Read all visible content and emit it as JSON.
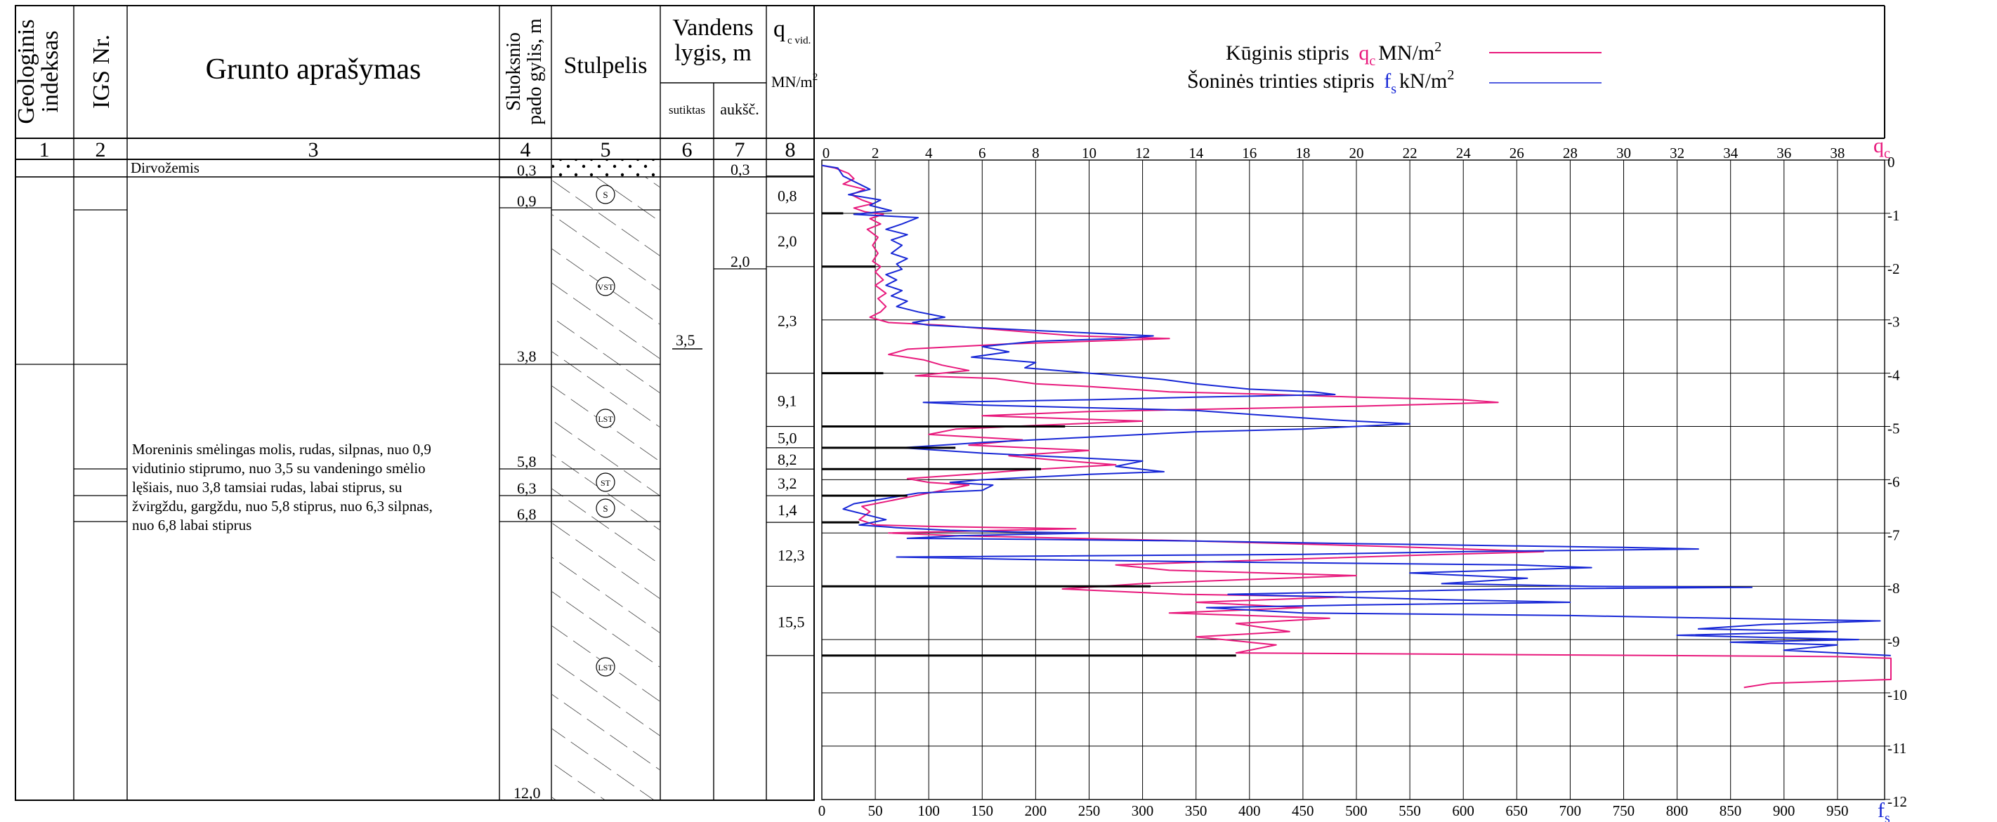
{
  "headers": {
    "col1": "Geologinis indeksas",
    "col1_l1": "Geologinis",
    "col1_l2": "indeksas",
    "col2": "IGS Nr.",
    "col3": "Grunto aprašymas",
    "col4": "Sluoksnio pado gylis, m",
    "col4_l1": "Sluoksnio",
    "col4_l2": "pado gylis, m",
    "col5": "Stulpelis",
    "col67": "Vandens lygis, m",
    "col67_l1": "Vandens",
    "col67_l2": "lygis, m",
    "col6": "sutiktas",
    "col7": "aukšč.",
    "col8_q": "q",
    "col8_sub": "c vid.",
    "col8_unit": "MN/m²",
    "col8_unit_base": "MN/m",
    "col8_unit_sup": "2"
  },
  "column_numbers": [
    "1",
    "2",
    "3",
    "4",
    "5",
    "6",
    "7",
    "8"
  ],
  "legend": {
    "qc_label": "Kūginis stipris",
    "qc_symbol": "q",
    "qc_sub": "c",
    "qc_unit": "MN/m",
    "qc_unit_sup": "2",
    "fs_label": "Šoninės trinties stipris",
    "fs_symbol": "f",
    "fs_sub": "s",
    "fs_unit": "kN/m",
    "fs_unit_sup": "2"
  },
  "layers": [
    {
      "depth_label": "0,3",
      "description": "Dirvožemis"
    },
    {
      "depth_label": "0,9"
    },
    {
      "depth_label": "3,8"
    },
    {
      "depth_label": "5,8"
    },
    {
      "depth_label": "6,3"
    },
    {
      "depth_label": "6,8"
    },
    {
      "depth_label": "12,0"
    }
  ],
  "main_description": [
    "Moreninis smėlingas molis, rudas, silpnas, nuo 0,9",
    "vidutinio stiprumo, nuo 3,5 su vandeningo smėlio",
    "lęšiais, nuo 3,8 tamsiai rudas, labai stiprus, su",
    "žvirgždu, gargždu, nuo 5,8 stiprus, nuo 6,3 silpnas,",
    "nuo 6,8 labai stiprus"
  ],
  "lithology_symbols": [
    "S",
    "VST",
    "LST",
    "ST",
    "S",
    "LST"
  ],
  "water": {
    "encountered": "3,5",
    "level_top": "0,3",
    "level_second": "2,0"
  },
  "qc_avg": [
    {
      "value": "0,8",
      "top": 0.3,
      "bottom": 1.0
    },
    {
      "value": "2,0",
      "top": 1.0,
      "bottom": 2.0
    },
    {
      "value": "2,3",
      "top": 2.0,
      "bottom": 4.0
    },
    {
      "value": "9,1",
      "top": 4.0,
      "bottom": 5.0
    },
    {
      "value": "5,0",
      "top": 5.0,
      "bottom": 5.4
    },
    {
      "value": "8,2",
      "top": 5.4,
      "bottom": 5.8
    },
    {
      "value": "3,2",
      "top": 5.8,
      "bottom": 6.3
    },
    {
      "value": "1,4",
      "top": 6.3,
      "bottom": 6.8
    },
    {
      "value": "12,3",
      "top": 6.8,
      "bottom": 8.0
    },
    {
      "value": "15,5",
      "top": 8.0,
      "bottom": 9.3
    }
  ],
  "chart_data": {
    "type": "line",
    "qc_axis": {
      "label": "q",
      "sub": "c",
      "min": 0,
      "max": 40,
      "ticks": [
        0,
        2,
        4,
        6,
        8,
        10,
        12,
        14,
        16,
        18,
        20,
        22,
        24,
        26,
        28,
        30,
        32,
        34,
        36,
        38
      ]
    },
    "fs_axis": {
      "label": "f",
      "sub": "s",
      "min": 0,
      "max": 1000,
      "ticks": [
        0,
        50,
        100,
        150,
        200,
        250,
        300,
        350,
        400,
        450,
        500,
        550,
        600,
        650,
        700,
        750,
        800,
        850,
        900,
        950
      ]
    },
    "depth_axis": {
      "min": 0,
      "max": 12,
      "ticks": [
        "0",
        "-1",
        "-2",
        "-3",
        "-4",
        "-5",
        "-6",
        "-7",
        "-8",
        "-9",
        "-10",
        "-11",
        "-12"
      ]
    },
    "grid": true,
    "series": [
      {
        "name": "Kūginis stipris",
        "color": "#e8197c",
        "points": [
          [
            0.0,
            0.1
          ],
          [
            0.5,
            0.15
          ],
          [
            1.0,
            0.25
          ],
          [
            1.2,
            0.35
          ],
          [
            0.8,
            0.45
          ],
          [
            1.6,
            0.55
          ],
          [
            1.1,
            0.65
          ],
          [
            1.5,
            0.75
          ],
          [
            1.9,
            0.82
          ],
          [
            1.2,
            0.9
          ],
          [
            1.6,
            0.97
          ],
          [
            2.3,
            1.02
          ],
          [
            1.8,
            1.1
          ],
          [
            2.2,
            1.2
          ],
          [
            1.7,
            1.3
          ],
          [
            2.1,
            1.45
          ],
          [
            1.9,
            1.6
          ],
          [
            2.1,
            1.75
          ],
          [
            1.9,
            1.9
          ],
          [
            2.2,
            2.0
          ],
          [
            2.0,
            2.1
          ],
          [
            2.3,
            2.25
          ],
          [
            2.0,
            2.35
          ],
          [
            2.4,
            2.5
          ],
          [
            2.1,
            2.6
          ],
          [
            2.4,
            2.75
          ],
          [
            2.2,
            2.85
          ],
          [
            1.8,
            2.95
          ],
          [
            2.5,
            3.05
          ],
          [
            4.5,
            3.1
          ],
          [
            7.0,
            3.2
          ],
          [
            9.5,
            3.3
          ],
          [
            13.0,
            3.35
          ],
          [
            7.0,
            3.45
          ],
          [
            3.2,
            3.55
          ],
          [
            2.5,
            3.65
          ],
          [
            3.8,
            3.75
          ],
          [
            4.5,
            3.85
          ],
          [
            5.5,
            3.95
          ],
          [
            3.5,
            4.05
          ],
          [
            6.5,
            4.1
          ],
          [
            8.0,
            4.2
          ],
          [
            10.0,
            4.25
          ],
          [
            11.5,
            4.3
          ],
          [
            13.0,
            4.35
          ],
          [
            17.0,
            4.4
          ],
          [
            20.0,
            4.45
          ],
          [
            24.0,
            4.5
          ],
          [
            25.3,
            4.55
          ],
          [
            20.0,
            4.62
          ],
          [
            10.0,
            4.72
          ],
          [
            6.0,
            4.8
          ],
          [
            12.0,
            4.9
          ],
          [
            8.0,
            4.98
          ],
          [
            5.0,
            5.05
          ],
          [
            4.0,
            5.15
          ],
          [
            7.5,
            5.25
          ],
          [
            5.5,
            5.35
          ],
          [
            10.0,
            5.45
          ],
          [
            7.0,
            5.55
          ],
          [
            8.5,
            5.62
          ],
          [
            11.0,
            5.72
          ],
          [
            7.5,
            5.82
          ],
          [
            5.5,
            5.9
          ],
          [
            3.2,
            5.98
          ],
          [
            4.0,
            6.05
          ],
          [
            5.5,
            6.1
          ],
          [
            4.5,
            6.2
          ],
          [
            3.5,
            6.3
          ],
          [
            2.5,
            6.4
          ],
          [
            1.5,
            6.5
          ],
          [
            1.8,
            6.6
          ],
          [
            1.4,
            6.75
          ],
          [
            2.0,
            6.85
          ],
          [
            4.5,
            6.88
          ],
          [
            9.5,
            6.92
          ],
          [
            5.0,
            6.97
          ],
          [
            2.5,
            7.0
          ],
          [
            5.0,
            7.05
          ],
          [
            9.5,
            7.1
          ],
          [
            14.0,
            7.15
          ],
          [
            21.0,
            7.25
          ],
          [
            27.0,
            7.35
          ],
          [
            22.0,
            7.42
          ],
          [
            17.0,
            7.5
          ],
          [
            11.0,
            7.6
          ],
          [
            13.0,
            7.7
          ],
          [
            20.0,
            7.8
          ],
          [
            15.5,
            7.88
          ],
          [
            12.0,
            7.95
          ],
          [
            9.0,
            8.05
          ],
          [
            13.5,
            8.15
          ],
          [
            19.5,
            8.2
          ],
          [
            14.0,
            8.3
          ],
          [
            18.0,
            8.4
          ],
          [
            13.0,
            8.5
          ],
          [
            19.0,
            8.6
          ],
          [
            15.5,
            8.7
          ],
          [
            17.5,
            8.85
          ],
          [
            14.0,
            8.95
          ],
          [
            17.0,
            9.1
          ],
          [
            15.5,
            9.25
          ],
          [
            38.0,
            9.32
          ],
          [
            40.0,
            9.35
          ],
          [
            40.0,
            9.75
          ],
          [
            35.5,
            9.82
          ],
          [
            34.5,
            9.9
          ]
        ]
      },
      {
        "name": "Šoninės trinties stipris",
        "color": "#1727d6",
        "points": [
          [
            0,
            0.1
          ],
          [
            15,
            0.15
          ],
          [
            20,
            0.3
          ],
          [
            35,
            0.45
          ],
          [
            45,
            0.55
          ],
          [
            25,
            0.65
          ],
          [
            55,
            0.75
          ],
          [
            45,
            0.85
          ],
          [
            65,
            0.95
          ],
          [
            30,
            1.02
          ],
          [
            90,
            1.08
          ],
          [
            75,
            1.2
          ],
          [
            60,
            1.3
          ],
          [
            80,
            1.4
          ],
          [
            65,
            1.5
          ],
          [
            75,
            1.6
          ],
          [
            65,
            1.75
          ],
          [
            80,
            1.85
          ],
          [
            70,
            1.95
          ],
          [
            75,
            2.05
          ],
          [
            60,
            2.15
          ],
          [
            70,
            2.25
          ],
          [
            60,
            2.35
          ],
          [
            75,
            2.45
          ],
          [
            65,
            2.55
          ],
          [
            80,
            2.65
          ],
          [
            70,
            2.75
          ],
          [
            90,
            2.85
          ],
          [
            115,
            2.95
          ],
          [
            85,
            3.05
          ],
          [
            100,
            3.1
          ],
          [
            150,
            3.15
          ],
          [
            200,
            3.2
          ],
          [
            310,
            3.3
          ],
          [
            280,
            3.35
          ],
          [
            200,
            3.4
          ],
          [
            150,
            3.5
          ],
          [
            175,
            3.6
          ],
          [
            140,
            3.7
          ],
          [
            200,
            3.8
          ],
          [
            190,
            3.9
          ],
          [
            250,
            4.0
          ],
          [
            280,
            4.05
          ],
          [
            320,
            4.12
          ],
          [
            350,
            4.2
          ],
          [
            400,
            4.3
          ],
          [
            460,
            4.35
          ],
          [
            480,
            4.4
          ],
          [
            350,
            4.45
          ],
          [
            250,
            4.5
          ],
          [
            95,
            4.55
          ],
          [
            150,
            4.6
          ],
          [
            250,
            4.65
          ],
          [
            350,
            4.7
          ],
          [
            420,
            4.8
          ],
          [
            480,
            4.88
          ],
          [
            550,
            4.95
          ],
          [
            450,
            5.05
          ],
          [
            350,
            5.1
          ],
          [
            250,
            5.2
          ],
          [
            150,
            5.3
          ],
          [
            75,
            5.4
          ],
          [
            150,
            5.5
          ],
          [
            200,
            5.55
          ],
          [
            300,
            5.65
          ],
          [
            275,
            5.75
          ],
          [
            320,
            5.85
          ],
          [
            250,
            5.9
          ],
          [
            200,
            5.95
          ],
          [
            150,
            6.0
          ],
          [
            120,
            6.05
          ],
          [
            160,
            6.1
          ],
          [
            150,
            6.2
          ],
          [
            90,
            6.25
          ],
          [
            60,
            6.35
          ],
          [
            30,
            6.45
          ],
          [
            20,
            6.55
          ],
          [
            40,
            6.65
          ],
          [
            60,
            6.75
          ],
          [
            35,
            6.85
          ],
          [
            70,
            6.9
          ],
          [
            120,
            6.95
          ],
          [
            180,
            6.98
          ],
          [
            250,
            7.0
          ],
          [
            130,
            7.05
          ],
          [
            80,
            7.1
          ],
          [
            200,
            7.12
          ],
          [
            350,
            7.15
          ],
          [
            500,
            7.2
          ],
          [
            750,
            7.27
          ],
          [
            820,
            7.3
          ],
          [
            600,
            7.35
          ],
          [
            450,
            7.4
          ],
          [
            70,
            7.45
          ],
          [
            200,
            7.5
          ],
          [
            400,
            7.55
          ],
          [
            650,
            7.6
          ],
          [
            720,
            7.65
          ],
          [
            550,
            7.75
          ],
          [
            660,
            7.85
          ],
          [
            580,
            7.95
          ],
          [
            720,
            8.0
          ],
          [
            870,
            8.02
          ],
          [
            650,
            8.05
          ],
          [
            380,
            8.15
          ],
          [
            580,
            8.25
          ],
          [
            700,
            8.3
          ],
          [
            500,
            8.35
          ],
          [
            360,
            8.4
          ],
          [
            450,
            8.5
          ],
          [
            700,
            8.55
          ],
          [
            900,
            8.62
          ],
          [
            990,
            8.65
          ],
          [
            880,
            8.72
          ],
          [
            820,
            8.8
          ],
          [
            950,
            8.85
          ],
          [
            800,
            8.92
          ],
          [
            970,
            9.0
          ],
          [
            850,
            9.05
          ],
          [
            950,
            9.1
          ],
          [
            900,
            9.2
          ],
          [
            1000,
            9.3
          ]
        ]
      }
    ]
  }
}
